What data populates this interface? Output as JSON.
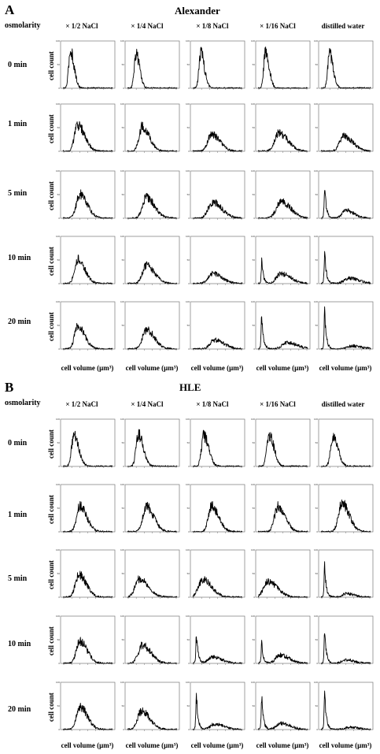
{
  "panel_a": {
    "letter": "A",
    "title": "Alexander",
    "osmolarity_label": "osmolarity",
    "columns": [
      "× 1/2 NaCl",
      "× 1/4 NaCl",
      "× 1/8 NaCl",
      "× 1/16 NaCl",
      "distilled water"
    ],
    "rows": [
      "0 min",
      "1 min",
      "5 min",
      "10 min",
      "20 min"
    ],
    "y_label": "cell count",
    "x_label": "cell volume (μm³)"
  },
  "panel_b": {
    "letter": "B",
    "title": "HLE",
    "osmolarity_label": "osmolarity",
    "columns": [
      "× 1/2 NaCl",
      "× 1/4 NaCl",
      "× 1/8 NaCl",
      "× 1/16 NaCl",
      "distilled water"
    ],
    "rows": [
      "0 min",
      "1 min",
      "5 min",
      "10 min",
      "20 min"
    ],
    "y_label": "cell count",
    "x_label": "cell volume (μm³)"
  },
  "chart_data": [
    {
      "type": "line",
      "panel": "A",
      "title": "Alexander",
      "xlabel": "cell volume (μm³)",
      "ylabel": "cell count",
      "ylim": [
        0,
        100
      ],
      "y_ticks": [
        "0",
        "50",
        "100"
      ],
      "x_scale": "log",
      "series_shape": "histogram",
      "grid": [
        [
          {
            "peak_x": 0.15,
            "peak_y": 82,
            "width": 0.18,
            "tail_y": 0
          },
          {
            "peak_x": 0.17,
            "peak_y": 76,
            "width": 0.18,
            "tail_y": 0
          },
          {
            "peak_x": 0.16,
            "peak_y": 78,
            "width": 0.18,
            "tail_y": 0
          },
          {
            "peak_x": 0.15,
            "peak_y": 80,
            "width": 0.18,
            "tail_y": 0
          },
          {
            "peak_x": 0.17,
            "peak_y": 76,
            "width": 0.18,
            "tail_y": 0
          }
        ],
        [
          {
            "peak_x": 0.3,
            "peak_y": 57,
            "width": 0.34,
            "tail_y": 0
          },
          {
            "peak_x": 0.3,
            "peak_y": 54,
            "width": 0.34,
            "tail_y": 0
          },
          {
            "peak_x": 0.38,
            "peak_y": 37,
            "width": 0.4,
            "tail_y": 0
          },
          {
            "peak_x": 0.42,
            "peak_y": 40,
            "width": 0.44,
            "tail_y": 0
          },
          {
            "peak_x": 0.46,
            "peak_y": 33,
            "width": 0.44,
            "tail_y": 0
          }
        ],
        [
          {
            "peak_x": 0.34,
            "peak_y": 52,
            "width": 0.36,
            "tail_y": 0
          },
          {
            "peak_x": 0.38,
            "peak_y": 45,
            "width": 0.4,
            "tail_y": 0
          },
          {
            "peak_x": 0.4,
            "peak_y": 35,
            "width": 0.46,
            "tail_y": 0
          },
          {
            "peak_x": 0.46,
            "peak_y": 36,
            "width": 0.48,
            "tail_y": 0
          },
          {
            "peak_x": 0.5,
            "peak_y": 17,
            "width": 0.4,
            "tail_y": 78
          }
        ],
        [
          {
            "peak_x": 0.3,
            "peak_y": 53,
            "width": 0.34,
            "tail_y": 0
          },
          {
            "peak_x": 0.38,
            "peak_y": 40,
            "width": 0.4,
            "tail_y": 0
          },
          {
            "peak_x": 0.4,
            "peak_y": 22,
            "width": 0.46,
            "tail_y": 0
          },
          {
            "peak_x": 0.46,
            "peak_y": 22,
            "width": 0.48,
            "tail_y": 52
          },
          {
            "peak_x": 0.56,
            "peak_y": 12,
            "width": 0.5,
            "tail_y": 78
          }
        ],
        [
          {
            "peak_x": 0.3,
            "peak_y": 50,
            "width": 0.34,
            "tail_y": 0
          },
          {
            "peak_x": 0.38,
            "peak_y": 42,
            "width": 0.4,
            "tail_y": 0
          },
          {
            "peak_x": 0.44,
            "peak_y": 20,
            "width": 0.46,
            "tail_y": 0
          },
          {
            "peak_x": 0.58,
            "peak_y": 14,
            "width": 0.5,
            "tail_y": 85
          },
          {
            "peak_x": 0.62,
            "peak_y": 7,
            "width": 0.5,
            "tail_y": 90
          }
        ]
      ]
    },
    {
      "type": "line",
      "panel": "B",
      "title": "HLE",
      "xlabel": "cell volume (μm³)",
      "ylabel": "cell count",
      "ylim": [
        0,
        100
      ],
      "y_ticks": [
        "0",
        "50",
        "100"
      ],
      "x_scale": "log",
      "series_shape": "histogram",
      "grid": [
        [
          {
            "peak_x": 0.22,
            "peak_y": 68,
            "width": 0.24,
            "tail_y": 0
          },
          {
            "peak_x": 0.22,
            "peak_y": 70,
            "width": 0.24,
            "tail_y": 0
          },
          {
            "peak_x": 0.22,
            "peak_y": 68,
            "width": 0.24,
            "tail_y": 0
          },
          {
            "peak_x": 0.22,
            "peak_y": 70,
            "width": 0.24,
            "tail_y": 0
          },
          {
            "peak_x": 0.24,
            "peak_y": 68,
            "width": 0.24,
            "tail_y": 0
          }
        ],
        [
          {
            "peak_x": 0.34,
            "peak_y": 55,
            "width": 0.34,
            "tail_y": 0
          },
          {
            "peak_x": 0.38,
            "peak_y": 55,
            "width": 0.36,
            "tail_y": 0
          },
          {
            "peak_x": 0.38,
            "peak_y": 58,
            "width": 0.34,
            "tail_y": 0
          },
          {
            "peak_x": 0.4,
            "peak_y": 55,
            "width": 0.36,
            "tail_y": 0
          },
          {
            "peak_x": 0.42,
            "peak_y": 62,
            "width": 0.36,
            "tail_y": 0
          }
        ],
        [
          {
            "peak_x": 0.32,
            "peak_y": 50,
            "width": 0.36,
            "tail_y": 0
          },
          {
            "peak_x": 0.24,
            "peak_y": 40,
            "width": 0.44,
            "tail_y": 0
          },
          {
            "peak_x": 0.2,
            "peak_y": 38,
            "width": 0.44,
            "tail_y": 0
          },
          {
            "peak_x": 0.2,
            "peak_y": 34,
            "width": 0.46,
            "tail_y": 0
          },
          {
            "peak_x": 0.5,
            "peak_y": 8,
            "width": 0.4,
            "tail_y": 72
          }
        ],
        [
          {
            "peak_x": 0.34,
            "peak_y": 48,
            "width": 0.36,
            "tail_y": 0
          },
          {
            "peak_x": 0.3,
            "peak_y": 40,
            "width": 0.42,
            "tail_y": 0
          },
          {
            "peak_x": 0.4,
            "peak_y": 14,
            "width": 0.46,
            "tail_y": 72
          },
          {
            "peak_x": 0.44,
            "peak_y": 18,
            "width": 0.46,
            "tail_y": 50
          },
          {
            "peak_x": 0.5,
            "peak_y": 8,
            "width": 0.4,
            "tail_y": 78
          }
        ],
        [
          {
            "peak_x": 0.34,
            "peak_y": 50,
            "width": 0.36,
            "tail_y": 0
          },
          {
            "peak_x": 0.28,
            "peak_y": 40,
            "width": 0.42,
            "tail_y": 0
          },
          {
            "peak_x": 0.44,
            "peak_y": 12,
            "width": 0.46,
            "tail_y": 85
          },
          {
            "peak_x": 0.46,
            "peak_y": 14,
            "width": 0.46,
            "tail_y": 80
          },
          {
            "peak_x": 0.56,
            "peak_y": 5,
            "width": 0.46,
            "tail_y": 88
          }
        ]
      ]
    }
  ]
}
